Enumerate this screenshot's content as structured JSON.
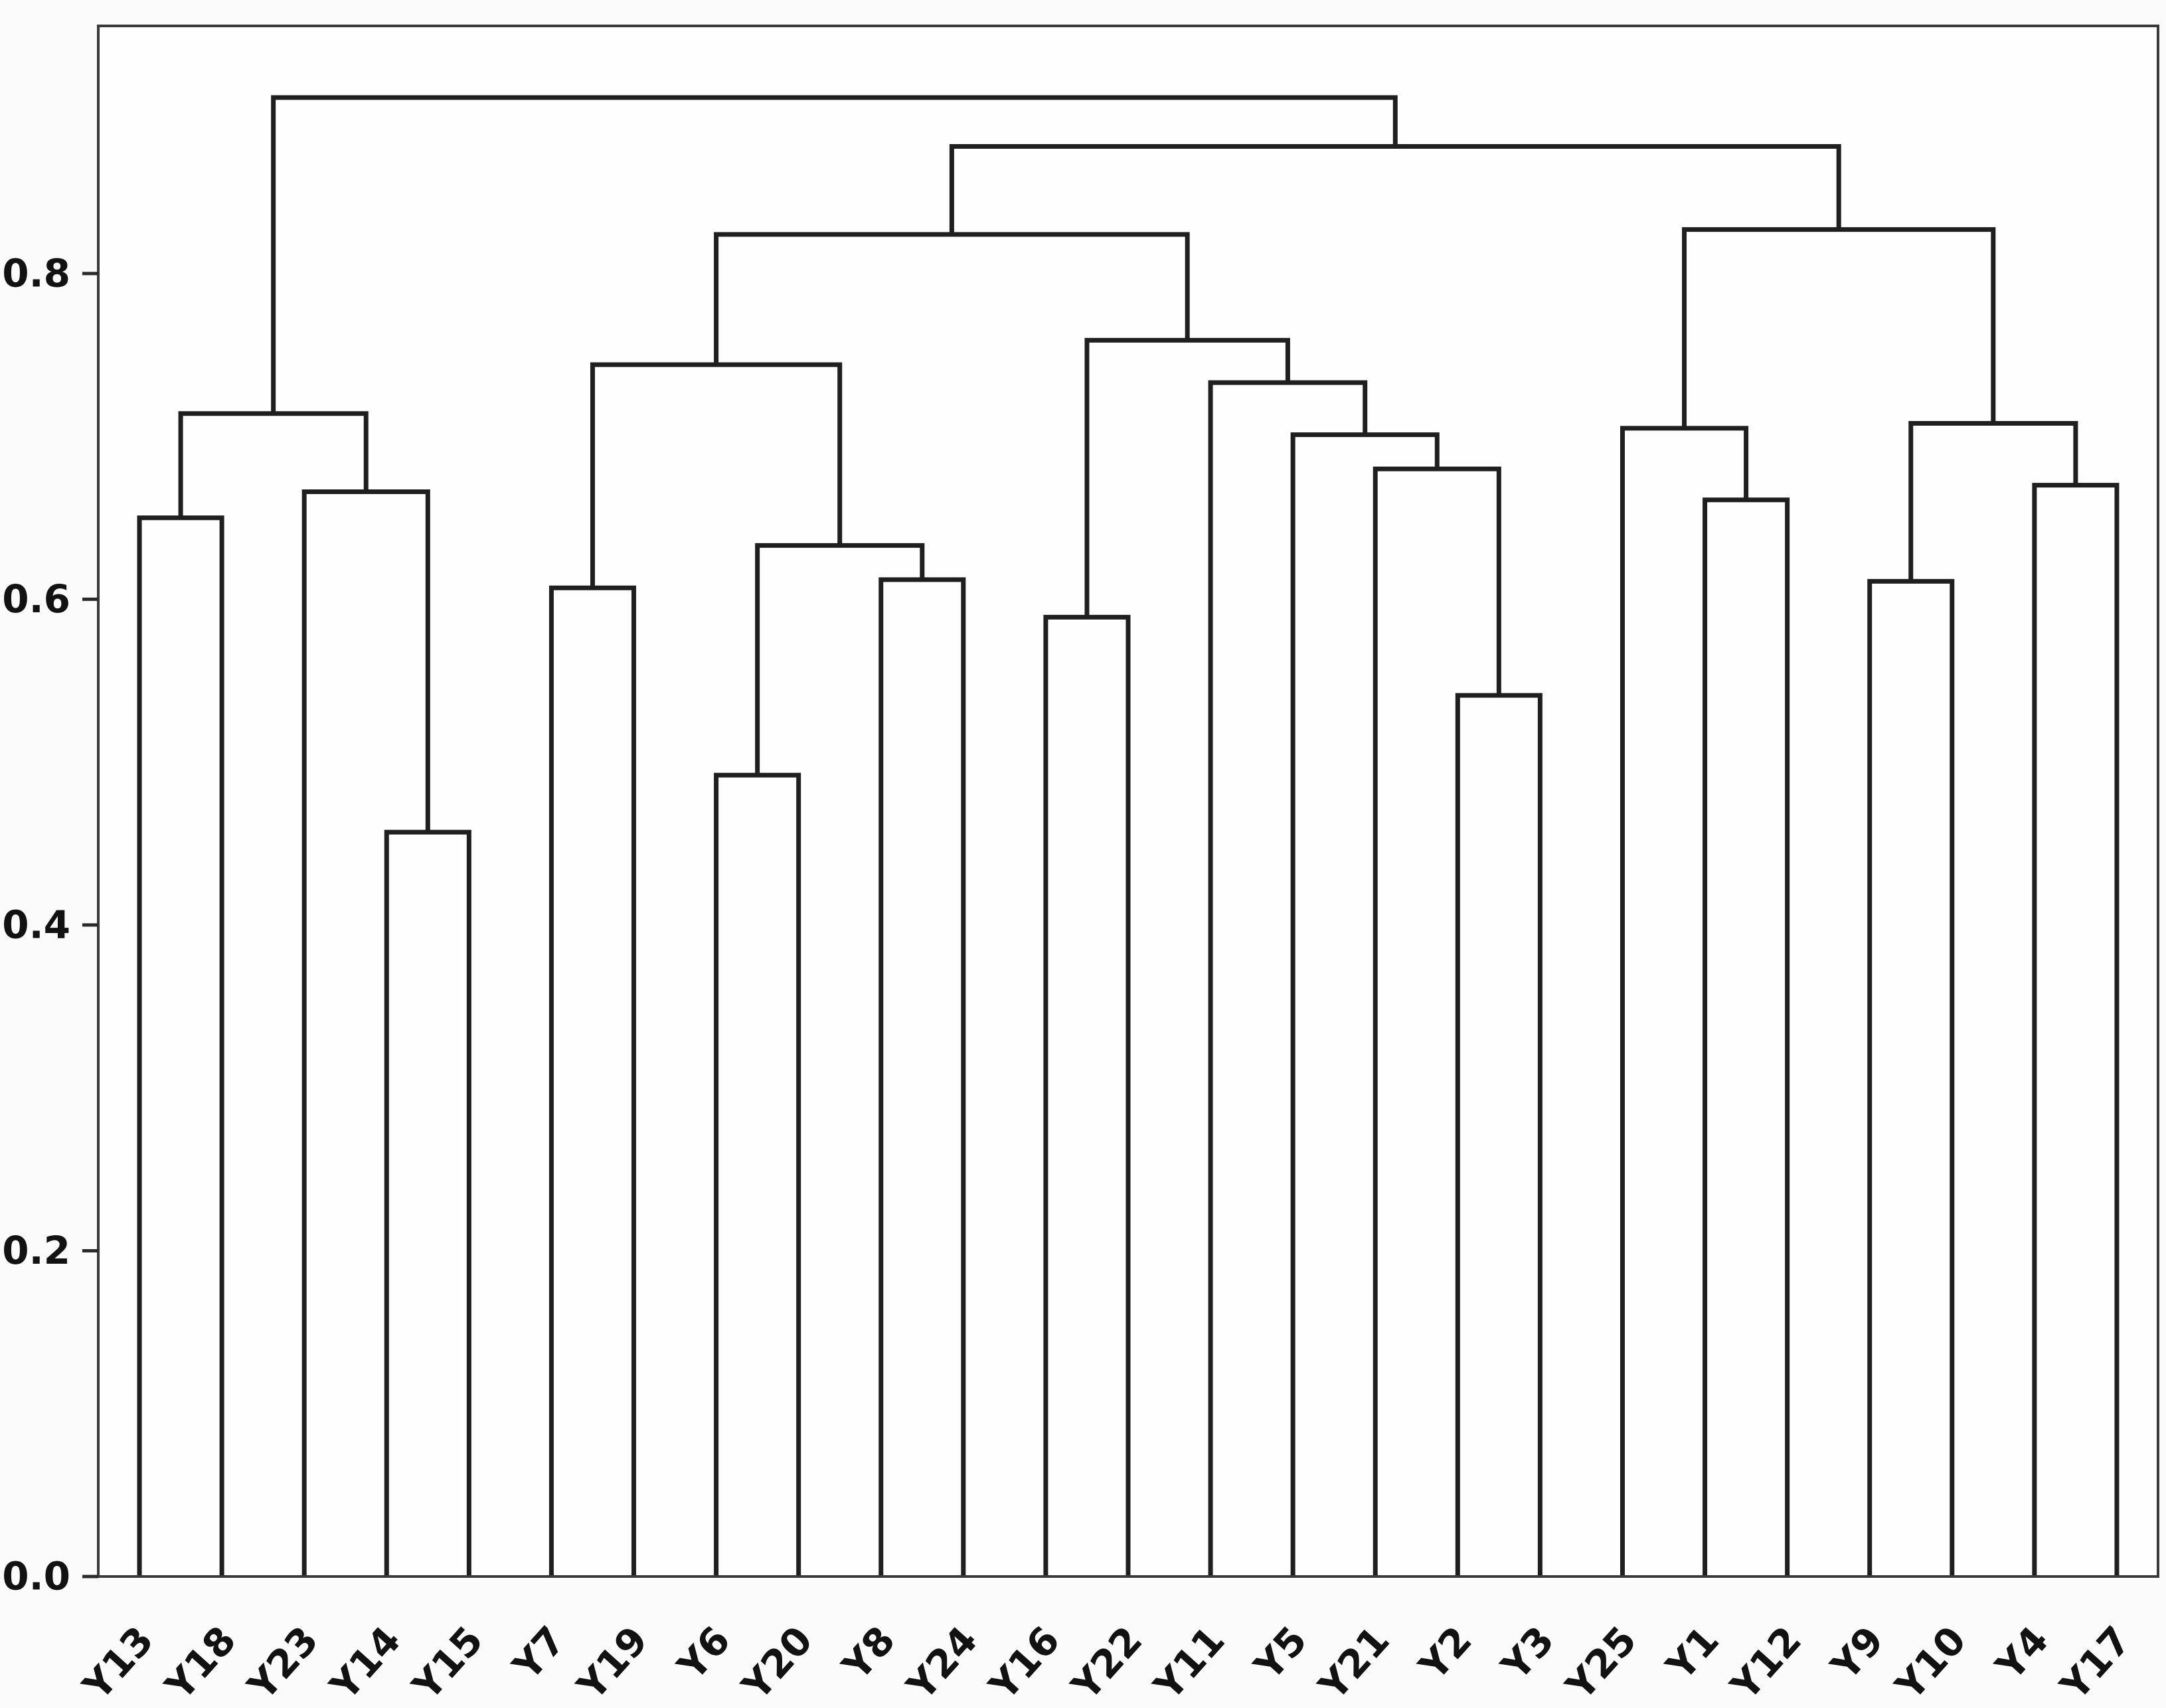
{
  "figure": {
    "title": "",
    "background": "#fbfbfb",
    "plot_background": "#fefefe",
    "line_color": "#1f1f1f",
    "frame_color": "#3a3a3a",
    "tick_color": "#2a2a2a",
    "text_color": "#121212"
  },
  "chart_data": {
    "type": "dendrogram",
    "orientation": "top",
    "title": "",
    "xlabel": "",
    "ylabel": "",
    "grid": false,
    "legend_position": "none",
    "ylim": [
      0,
      0.952
    ],
    "leaf_label_rotation_deg": 48,
    "yticks": [
      {
        "value": 0.0,
        "label": "0.0"
      },
      {
        "value": 0.2,
        "label": "0.2"
      },
      {
        "value": 0.4,
        "label": "0.4"
      },
      {
        "value": 0.6,
        "label": "0.6"
      },
      {
        "value": 0.8,
        "label": "0.8"
      }
    ],
    "leaves": [
      "Y13",
      "Y18",
      "Y23",
      "Y14",
      "Y15",
      "Y7",
      "Y19",
      "Y6",
      "Y20",
      "Y8",
      "Y24",
      "Y16",
      "Y22",
      "Y11",
      "Y5",
      "Y21",
      "Y2",
      "Y3",
      "Y25",
      "Y1",
      "Y12",
      "Y9",
      "Y10",
      "Y4",
      "Y17"
    ],
    "merges": [
      {
        "id": "a2",
        "children": [
          "Y14",
          "Y15"
        ],
        "height": 0.457
      },
      {
        "id": "m2",
        "children": [
          "Y6",
          "Y20"
        ],
        "height": 0.492
      },
      {
        "id": "r2",
        "children": [
          "Y2",
          "Y3"
        ],
        "height": 0.541
      },
      {
        "id": "r1",
        "children": [
          "Y16",
          "Y22"
        ],
        "height": 0.589
      },
      {
        "id": "m1",
        "children": [
          "Y7",
          "Y19"
        ],
        "height": 0.607
      },
      {
        "id": "b3",
        "children": [
          "Y9",
          "Y10"
        ],
        "height": 0.611
      },
      {
        "id": "m3",
        "children": [
          "Y8",
          "Y24"
        ],
        "height": 0.612
      },
      {
        "id": "m4",
        "children": [
          "m2",
          "m3"
        ],
        "height": 0.633
      },
      {
        "id": "a1",
        "children": [
          "Y13",
          "Y18"
        ],
        "height": 0.65
      },
      {
        "id": "b1",
        "children": [
          "Y1",
          "Y12"
        ],
        "height": 0.661
      },
      {
        "id": "a3",
        "children": [
          "Y23",
          "a2"
        ],
        "height": 0.666
      },
      {
        "id": "b4",
        "children": [
          "Y4",
          "Y17"
        ],
        "height": 0.67
      },
      {
        "id": "r3",
        "children": [
          "Y21",
          "r2"
        ],
        "height": 0.68
      },
      {
        "id": "r4",
        "children": [
          "Y5",
          "r3"
        ],
        "height": 0.701
      },
      {
        "id": "b2",
        "children": [
          "Y25",
          "b1"
        ],
        "height": 0.705
      },
      {
        "id": "b5",
        "children": [
          "b3",
          "b4"
        ],
        "height": 0.708
      },
      {
        "id": "a4",
        "children": [
          "a1",
          "a3"
        ],
        "height": 0.714
      },
      {
        "id": "r5",
        "children": [
          "Y11",
          "r4"
        ],
        "height": 0.733
      },
      {
        "id": "m5",
        "children": [
          "m1",
          "m4"
        ],
        "height": 0.744
      },
      {
        "id": "r6",
        "children": [
          "r1",
          "r5"
        ],
        "height": 0.759
      },
      {
        "id": "mM",
        "children": [
          "m5",
          "r6"
        ],
        "height": 0.824
      },
      {
        "id": "mR",
        "children": [
          "b2",
          "b5"
        ],
        "height": 0.827
      },
      {
        "id": "n2",
        "children": [
          "mM",
          "mR"
        ],
        "height": 0.878
      },
      {
        "id": "root",
        "children": [
          "a4",
          "n2"
        ],
        "height": 0.908
      }
    ]
  }
}
